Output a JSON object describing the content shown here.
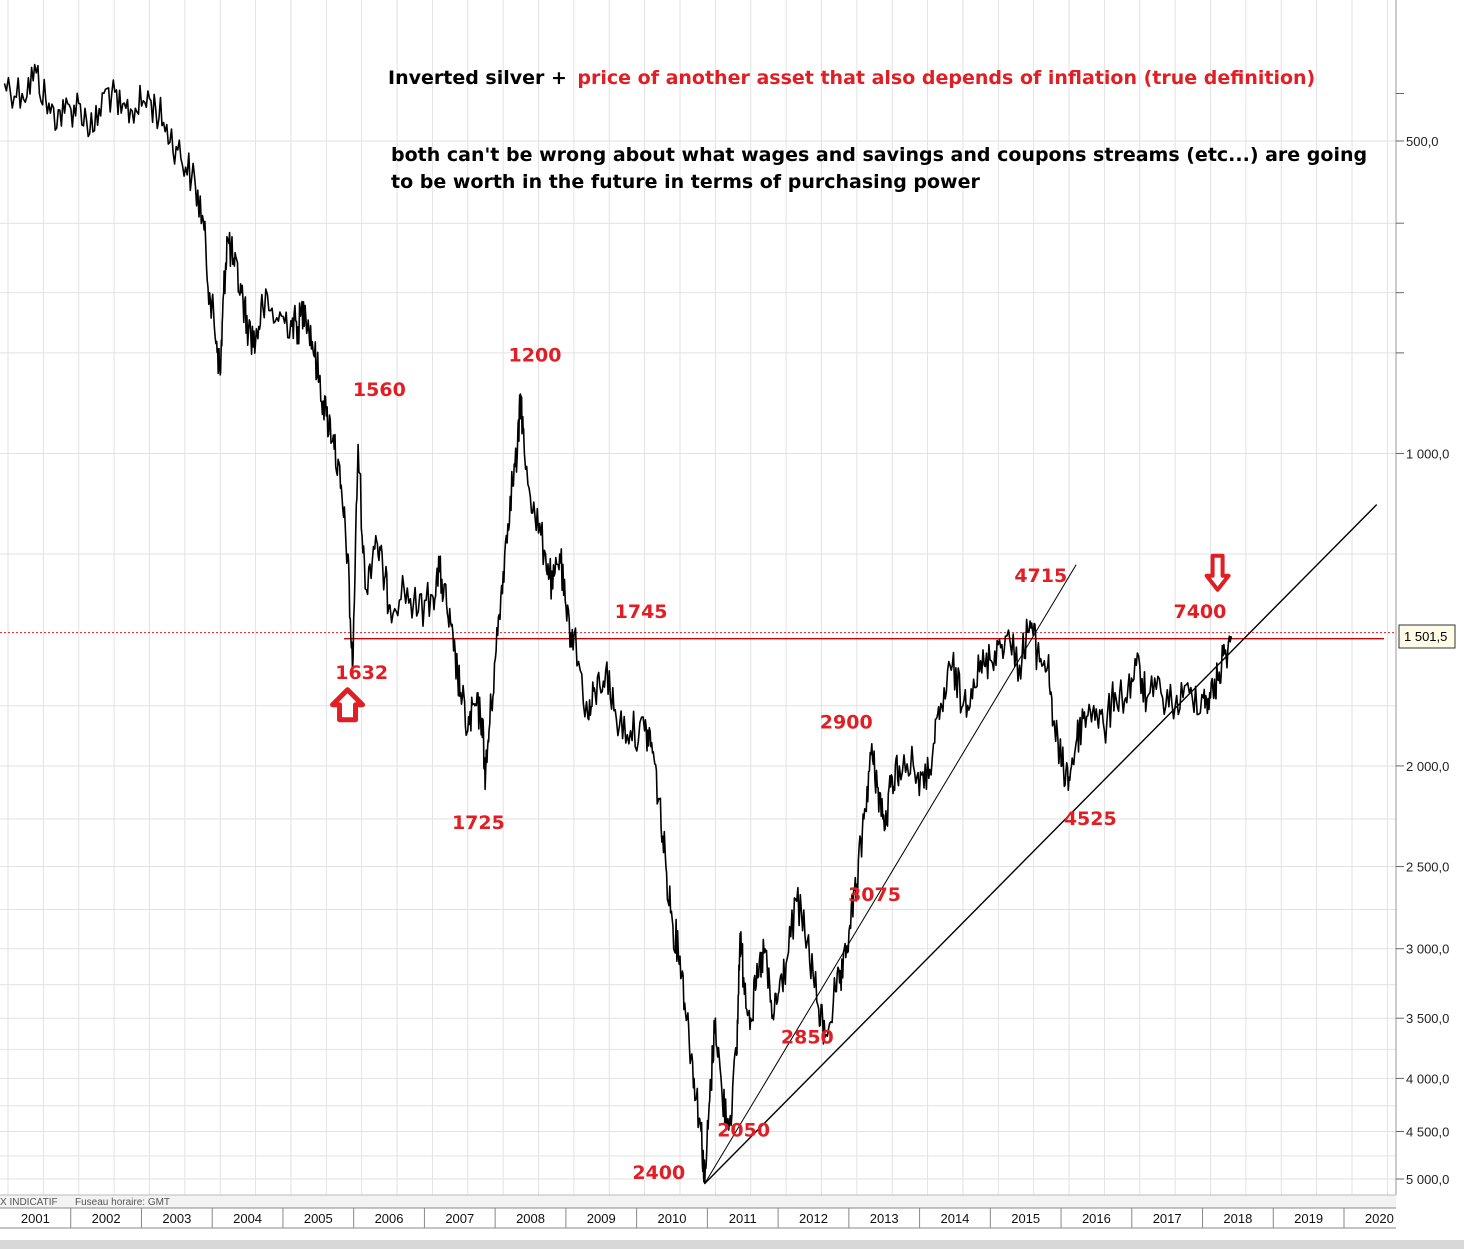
{
  "chart_data": {
    "type": "line",
    "scale": "inverted-log",
    "title": "",
    "xlabel": "",
    "ylabel": "",
    "ylim": [
      5150,
      430
    ],
    "x_ticks": [
      "2001",
      "2002",
      "2003",
      "2004",
      "2005",
      "2006",
      "2007",
      "2008",
      "2009",
      "2010",
      "2011",
      "2012",
      "2013",
      "2014",
      "2015",
      "2016",
      "2017",
      "2018",
      "2019",
      "2020"
    ],
    "y_ticks": [
      {
        "value": 500,
        "label": "500,0"
      },
      {
        "value": 1000,
        "label": "1 000,0"
      },
      {
        "value": 2000,
        "label": "2 000,0"
      },
      {
        "value": 2500,
        "label": "2 500,0"
      },
      {
        "value": 3000,
        "label": "3 000,0"
      },
      {
        "value": 3500,
        "label": "3 500,0"
      },
      {
        "value": 4000,
        "label": "4 000,0"
      },
      {
        "value": 4500,
        "label": "4 500,0"
      },
      {
        "value": 5000,
        "label": "5 000,0"
      }
    ],
    "grid": true,
    "series": [
      {
        "points": [
          [
            2000.95,
            440
          ],
          [
            2001.2,
            450
          ],
          [
            2001.4,
            430
          ],
          [
            2001.6,
            470
          ],
          [
            2001.8,
            470
          ],
          [
            2002.0,
            460
          ],
          [
            2002.2,
            490
          ],
          [
            2002.4,
            445
          ],
          [
            2002.6,
            470
          ],
          [
            2002.8,
            465
          ],
          [
            2003.0,
            455
          ],
          [
            2003.2,
            480
          ],
          [
            2003.4,
            510
          ],
          [
            2003.6,
            540
          ],
          [
            2003.75,
            590
          ],
          [
            2003.85,
            700
          ],
          [
            2003.95,
            780
          ],
          [
            2004.0,
            840
          ],
          [
            2004.05,
            700
          ],
          [
            2004.1,
            620
          ],
          [
            2004.2,
            660
          ],
          [
            2004.3,
            700
          ],
          [
            2004.4,
            760
          ],
          [
            2004.5,
            780
          ],
          [
            2004.6,
            720
          ],
          [
            2004.8,
            740
          ],
          [
            2005.0,
            745
          ],
          [
            2005.1,
            755
          ],
          [
            2005.2,
            720
          ],
          [
            2005.3,
            780
          ],
          [
            2005.4,
            850
          ],
          [
            2005.5,
            920
          ],
          [
            2005.6,
            960
          ],
          [
            2005.7,
            1080
          ],
          [
            2005.8,
            1250
          ],
          [
            2005.87,
            1620
          ],
          [
            2005.95,
            980
          ],
          [
            2006.05,
            1350
          ],
          [
            2006.2,
            1200
          ],
          [
            2006.3,
            1300
          ],
          [
            2006.4,
            1400
          ],
          [
            2006.6,
            1350
          ],
          [
            2006.8,
            1420
          ],
          [
            2007.0,
            1370
          ],
          [
            2007.1,
            1300
          ],
          [
            2007.2,
            1400
          ],
          [
            2007.3,
            1550
          ],
          [
            2007.4,
            1700
          ],
          [
            2007.5,
            1850
          ],
          [
            2007.6,
            1750
          ],
          [
            2007.7,
            1800
          ],
          [
            2007.75,
            2050
          ],
          [
            2007.8,
            1850
          ],
          [
            2007.9,
            1550
          ],
          [
            2008.0,
            1300
          ],
          [
            2008.1,
            1100
          ],
          [
            2008.2,
            1000
          ],
          [
            2008.25,
            880
          ],
          [
            2008.3,
            1000
          ],
          [
            2008.45,
            1150
          ],
          [
            2008.6,
            1250
          ],
          [
            2008.7,
            1350
          ],
          [
            2008.8,
            1250
          ],
          [
            2008.9,
            1450
          ],
          [
            2009.0,
            1500
          ],
          [
            2009.2,
            1800
          ],
          [
            2009.3,
            1700
          ],
          [
            2009.45,
            1620
          ],
          [
            2009.6,
            1800
          ],
          [
            2009.8,
            1850
          ],
          [
            2010.0,
            1850
          ],
          [
            2010.1,
            1900
          ],
          [
            2010.2,
            2150
          ],
          [
            2010.3,
            2500
          ],
          [
            2010.4,
            2850
          ],
          [
            2010.5,
            3050
          ],
          [
            2010.6,
            3500
          ],
          [
            2010.7,
            4000
          ],
          [
            2010.8,
            4500
          ],
          [
            2010.85,
            5050
          ],
          [
            2010.92,
            4200
          ],
          [
            2011.0,
            3500
          ],
          [
            2011.1,
            4200
          ],
          [
            2011.2,
            4400
          ],
          [
            2011.3,
            3800
          ],
          [
            2011.35,
            2900
          ],
          [
            2011.4,
            3200
          ],
          [
            2011.5,
            3500
          ],
          [
            2011.6,
            3200
          ],
          [
            2011.7,
            3000
          ],
          [
            2011.8,
            3500
          ],
          [
            2011.9,
            3300
          ],
          [
            2012.0,
            3100
          ],
          [
            2012.15,
            2700
          ],
          [
            2012.3,
            2950
          ],
          [
            2012.45,
            3400
          ],
          [
            2012.55,
            3650
          ],
          [
            2012.7,
            3300
          ],
          [
            2012.8,
            3200
          ],
          [
            2012.9,
            2850
          ],
          [
            2013.0,
            2600
          ],
          [
            2013.1,
            2250
          ],
          [
            2013.2,
            1950
          ],
          [
            2013.3,
            2100
          ],
          [
            2013.4,
            2300
          ],
          [
            2013.5,
            2050
          ],
          [
            2013.6,
            2000
          ],
          [
            2013.8,
            2000
          ],
          [
            2013.95,
            2100
          ],
          [
            2014.1,
            1900
          ],
          [
            2014.2,
            1750
          ],
          [
            2014.35,
            1600
          ],
          [
            2014.5,
            1750
          ],
          [
            2014.65,
            1650
          ],
          [
            2014.8,
            1600
          ],
          [
            2014.95,
            1550
          ],
          [
            2015.1,
            1500
          ],
          [
            2015.3,
            1600
          ],
          [
            2015.45,
            1450
          ],
          [
            2015.55,
            1560
          ],
          [
            2015.7,
            1600
          ],
          [
            2015.8,
            1850
          ],
          [
            2015.9,
            2000
          ],
          [
            2016.0,
            2050
          ],
          [
            2016.1,
            1900
          ],
          [
            2016.2,
            1800
          ],
          [
            2016.35,
            1750
          ],
          [
            2016.5,
            1850
          ],
          [
            2016.65,
            1700
          ],
          [
            2016.8,
            1720
          ],
          [
            2016.95,
            1600
          ],
          [
            2017.1,
            1720
          ],
          [
            2017.3,
            1700
          ],
          [
            2017.5,
            1750
          ],
          [
            2017.7,
            1700
          ],
          [
            2017.9,
            1720
          ],
          [
            2018.0,
            1720
          ],
          [
            2018.1,
            1650
          ],
          [
            2018.2,
            1560
          ],
          [
            2018.3,
            1510
          ]
        ]
      }
    ],
    "trendlines": [
      {
        "from": [
          2010.85,
          5050
        ],
        "to": [
          2016.1,
          1280
        ]
      },
      {
        "from": [
          2010.85,
          5050
        ],
        "to": [
          2020.35,
          1120
        ]
      }
    ],
    "reference_line": {
      "value": 1501.5,
      "label": "1 501,5",
      "color": "#cc0000"
    },
    "annotations": [
      {
        "text": "1632",
        "x": 2006.0,
        "y": 1650
      },
      {
        "text": "1560",
        "x": 2006.25,
        "y": 880
      },
      {
        "text": "1725",
        "x": 2007.65,
        "y": 2300
      },
      {
        "text": "1200",
        "x": 2008.45,
        "y": 815
      },
      {
        "text": "1745",
        "x": 2009.95,
        "y": 1440
      },
      {
        "text": "2400",
        "x": 2010.2,
        "y": 5000
      },
      {
        "text": "2050",
        "x": 2011.4,
        "y": 4550
      },
      {
        "text": "2850",
        "x": 2012.3,
        "y": 3700
      },
      {
        "text": "2900",
        "x": 2012.85,
        "y": 1840
      },
      {
        "text": "3075",
        "x": 2013.25,
        "y": 2700
      },
      {
        "text": "4715",
        "x": 2015.6,
        "y": 1330
      },
      {
        "text": "4525",
        "x": 2016.3,
        "y": 2280
      },
      {
        "text": "7400",
        "x": 2017.85,
        "y": 1440
      }
    ],
    "markers": [
      {
        "type": "arrow-up",
        "x": 2005.8,
        "y": 1750,
        "color": "#e01e24"
      },
      {
        "type": "arrow-down",
        "x": 2018.1,
        "y": 1300,
        "color": "#e01e24"
      }
    ]
  },
  "text_annotation": {
    "black_part": "Inverted silver +",
    "red_part": "price of another asset that also depends of inflation (true definition)",
    "line2": "both can't be wrong about what wages and savings and coupons streams (etc...) are going",
    "line3": "to be worth in the future in terms of purchasing power"
  },
  "footer": {
    "source_label": "X INDICATIF",
    "timezone_label": "Fuseau horaire: GMT"
  },
  "colors": {
    "accent_red": "#e01e24",
    "line": "#000000",
    "grid": "#e2e2e2"
  }
}
